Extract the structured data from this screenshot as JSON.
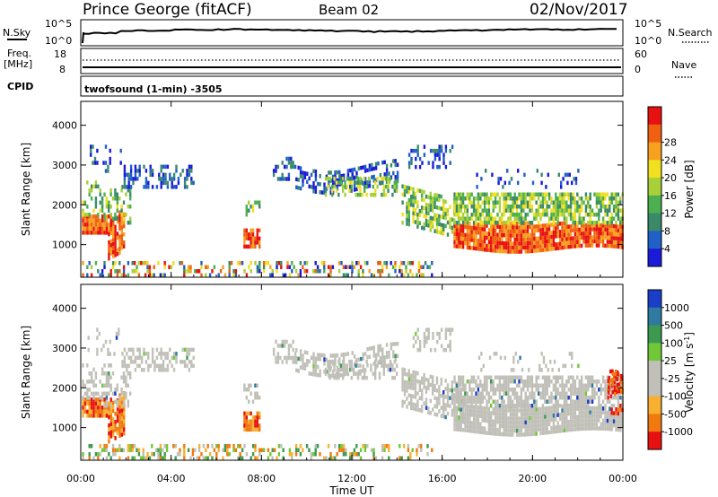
{
  "header": {
    "title": "Prince George (fitACF)",
    "beam": "Beam 02",
    "date": "02/Nov/2017"
  },
  "top_panels": {
    "nsky_label": "N.Sky",
    "nsky_ticks": [
      "10^5",
      "10^0"
    ],
    "nsearch_label": "N.Search",
    "freq_label": "Freq.",
    "freq_unit": "[MHz]",
    "freq_ticks": [
      "18",
      "8"
    ],
    "nave_ticks": [
      "60",
      "0"
    ],
    "nave_label": "Nave",
    "cpid_label": "CPID",
    "cpid_text": "twofsound (1-min) -3505"
  },
  "chart_data": [
    {
      "type": "heatmap",
      "name": "power",
      "ylabel": "Slant Range [km]",
      "ylim": [
        180,
        4600
      ],
      "xlim": [
        0,
        24
      ],
      "yticks": [
        "1000",
        "2000",
        "3000",
        "4000"
      ],
      "colorbar_label": "Power [dB]",
      "colorbar_ticks": [
        "4",
        "8",
        "12",
        "16",
        "20",
        "24",
        "28"
      ],
      "colors": [
        "#1a1ad8",
        "#2060c8",
        "#3a8a6a",
        "#4caf50",
        "#a8d038",
        "#f0e020",
        "#f8a020",
        "#f06010",
        "#e81010"
      ]
    },
    {
      "type": "heatmap",
      "name": "velocity",
      "ylabel": "Slant Range [km]",
      "xlabel": "Time UT",
      "ylim": [
        180,
        4600
      ],
      "xlim": [
        0,
        24
      ],
      "yticks": [
        "1000",
        "2000",
        "3000",
        "4000"
      ],
      "xticks": [
        "00:00",
        "04:00",
        "08:00",
        "12:00",
        "16:00",
        "20:00",
        "00:00"
      ],
      "colorbar_label": "Velocity [m s",
      "colorbar_sup": "-1",
      "colorbar_ticks": [
        "1000",
        "500",
        "100",
        "25",
        "-25",
        "-100",
        "-500",
        "-1000"
      ],
      "colors": [
        "#1a3ec8",
        "#2f7aa0",
        "#3c9a50",
        "#70c838",
        "#c0c0b8",
        "#c0c0b8",
        "#f8b030",
        "#f07a10",
        "#e81010"
      ]
    }
  ]
}
